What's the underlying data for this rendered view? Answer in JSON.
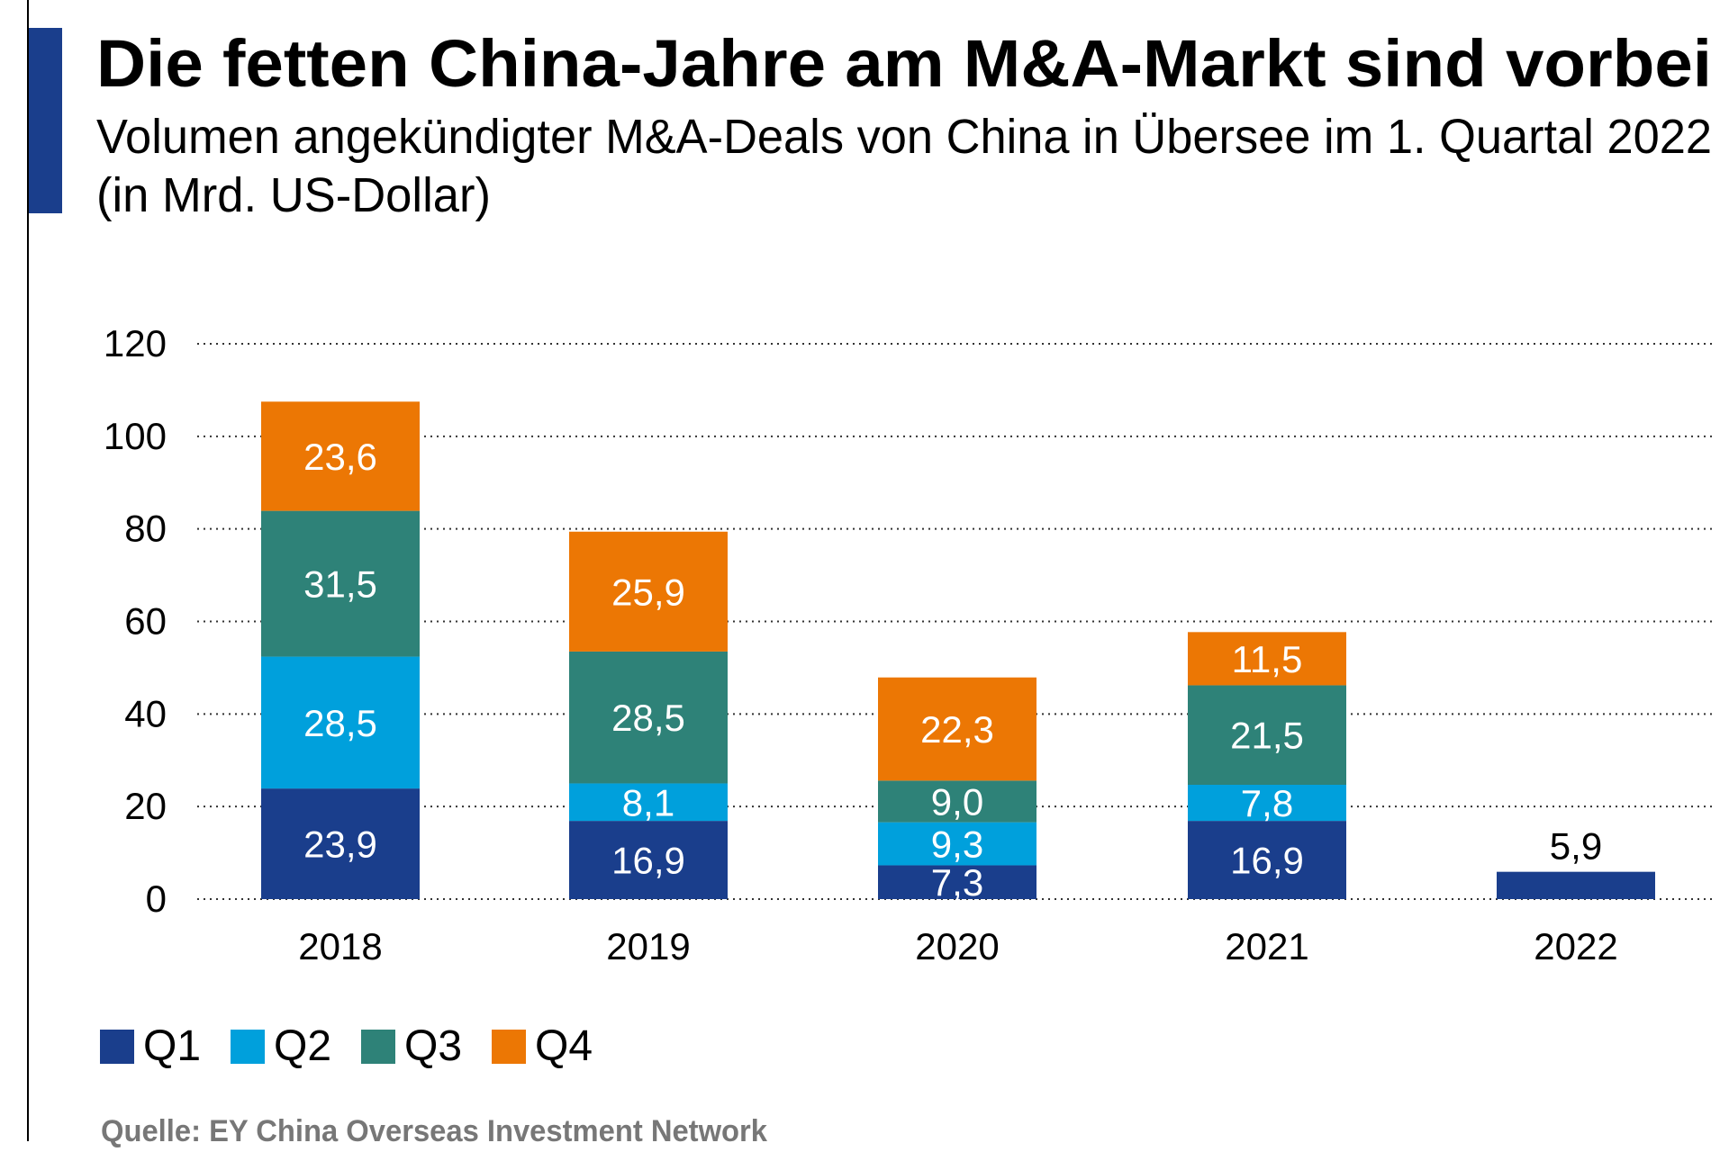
{
  "header": {
    "title": "Die fetten China-Jahre am M&A-Markt sind vorbei",
    "subtitle_line1": "Volumen angekündigter M&A-Deals von China in Übersee im 1. Quartal 2022",
    "subtitle_line2": "(in Mrd. US-Dollar)"
  },
  "source": "Quelle: EY China Overseas Investment Network",
  "colors": {
    "accent": "#1a3e8c",
    "Q1": "#1a3e8c",
    "Q2": "#00a0dc",
    "Q3": "#2e8278",
    "Q4": "#ec7704"
  },
  "chart_data": {
    "type": "bar",
    "stacked": true,
    "categories": [
      "2018",
      "2019",
      "2020",
      "2021",
      "2022"
    ],
    "series": [
      {
        "name": "Q1",
        "color": "#1a3e8c",
        "values": [
          23.9,
          16.9,
          7.3,
          16.9,
          5.9
        ]
      },
      {
        "name": "Q2",
        "color": "#00a0dc",
        "values": [
          28.5,
          8.1,
          9.3,
          7.8,
          null
        ]
      },
      {
        "name": "Q3",
        "color": "#2e8278",
        "values": [
          31.5,
          28.5,
          9.0,
          21.5,
          null
        ]
      },
      {
        "name": "Q4",
        "color": "#ec7704",
        "values": [
          23.6,
          25.9,
          22.3,
          11.5,
          null
        ]
      }
    ],
    "yticks": [
      "0",
      "20",
      "40",
      "60",
      "80",
      "100",
      "120"
    ],
    "ylim": [
      0,
      120
    ],
    "grid": true,
    "grid_style": "dotted",
    "legend_position": "bottom-left",
    "decimal_separator": ","
  }
}
